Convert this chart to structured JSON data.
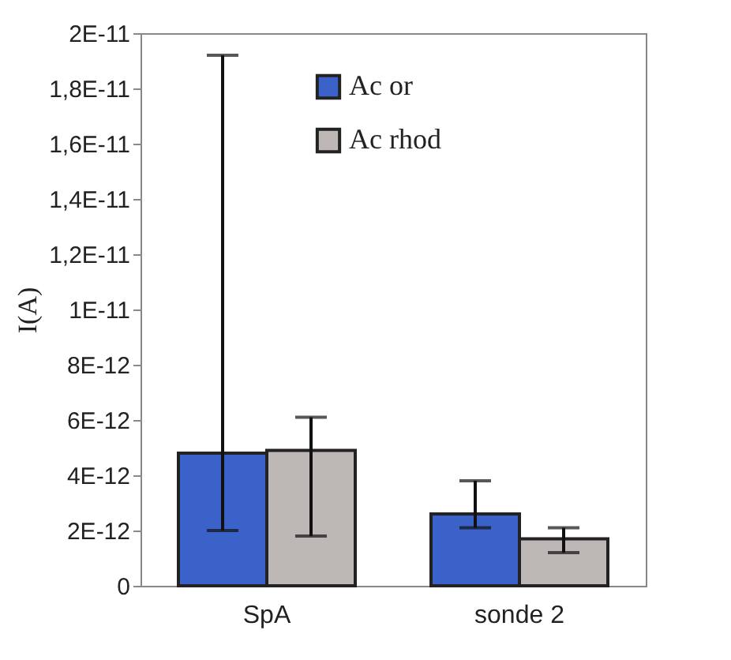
{
  "chart_data": {
    "type": "bar",
    "ylabel": "I(A)",
    "categories": [
      "SpA",
      "sonde 2"
    ],
    "series": [
      {
        "name": "Ac or",
        "color": "#3a62c8",
        "values": [
          4.8e-12,
          2.6e-12
        ],
        "errors": [
          [
            2e-12,
            1.92e-11
          ],
          [
            2.1e-12,
            3.8e-12
          ]
        ]
      },
      {
        "name": "Ac rhod",
        "color": "#bdb7b5",
        "values": [
          4.9e-12,
          1.7e-12
        ],
        "errors": [
          [
            1.8e-12,
            6.1e-12
          ],
          [
            1.2e-12,
            2.1e-12
          ]
        ]
      }
    ],
    "ylim": [
      0,
      2e-11
    ],
    "yticks": [
      0,
      {
        "value": 2e-12,
        "label": "2E-12"
      },
      {
        "value": 4e-12,
        "label": "4E-12"
      },
      {
        "value": 6e-12,
        "label": "6E-12"
      },
      {
        "value": 8e-12,
        "label": "8E-12"
      },
      {
        "value": 1e-11,
        "label": "1E-11"
      },
      {
        "value": 1.2e-11,
        "label": "1,2E-11"
      },
      {
        "value": 1.4e-11,
        "label": "1,4E-11"
      },
      {
        "value": 1.6e-11,
        "label": "1,6E-11"
      },
      {
        "value": 1.8e-11,
        "label": "1,8E-11"
      },
      {
        "value": 2e-11,
        "label": "2E-11"
      }
    ],
    "legend": "top left",
    "grid": false
  }
}
